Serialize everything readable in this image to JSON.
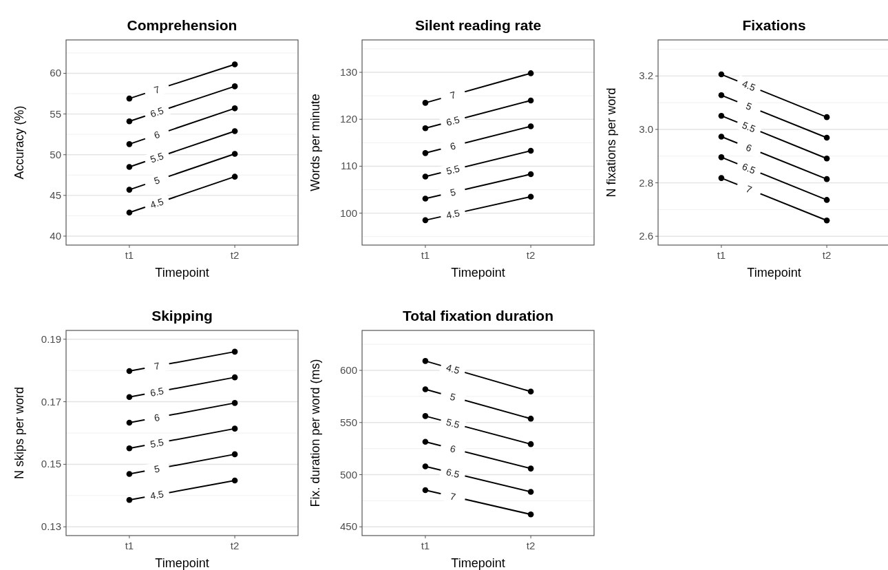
{
  "chart_data": [
    {
      "type": "line",
      "title": "Comprehension",
      "xlabel": "Timepoint",
      "ylabel": "Accuracy (%)",
      "categories": [
        "t1",
        "t2"
      ],
      "ylim": [
        38.9,
        64.1
      ],
      "yticks": [
        40,
        45,
        50,
        55,
        60
      ],
      "grid": "y",
      "marker": "circle",
      "legend": false,
      "series": [
        {
          "name": "4.5",
          "color": "#000000",
          "values": [
            42.9,
            47.3
          ]
        },
        {
          "name": "5",
          "color": "#000000",
          "values": [
            45.7,
            50.1
          ]
        },
        {
          "name": "5.5",
          "color": "#000000",
          "values": [
            48.5,
            52.9
          ]
        },
        {
          "name": "6",
          "color": "#000000",
          "values": [
            51.3,
            55.7
          ]
        },
        {
          "name": "6.5",
          "color": "#000000",
          "values": [
            54.1,
            58.4
          ]
        },
        {
          "name": "7",
          "color": "#000000",
          "values": [
            56.9,
            61.1
          ]
        }
      ]
    },
    {
      "type": "line",
      "title": "Silent reading rate",
      "xlabel": "Timepoint",
      "ylabel": "Words per minute",
      "categories": [
        "t1",
        "t2"
      ],
      "ylim": [
        93.2,
        136.9
      ],
      "yticks": [
        100,
        110,
        120,
        130
      ],
      "grid": "y",
      "marker": "circle",
      "legend": false,
      "series": [
        {
          "name": "4.5",
          "color": "#000000",
          "values": [
            98.5,
            103.5
          ]
        },
        {
          "name": "5",
          "color": "#000000",
          "values": [
            103.1,
            108.3
          ]
        },
        {
          "name": "5.5",
          "color": "#000000",
          "values": [
            107.8,
            113.3
          ]
        },
        {
          "name": "6",
          "color": "#000000",
          "values": [
            112.8,
            118.5
          ]
        },
        {
          "name": "6.5",
          "color": "#000000",
          "values": [
            118.1,
            124.0
          ]
        },
        {
          "name": "7",
          "color": "#000000",
          "values": [
            123.5,
            129.8
          ]
        }
      ]
    },
    {
      "type": "line",
      "title": "Fixations",
      "xlabel": "Timepoint",
      "ylabel": "N fixations per word",
      "categories": [
        "t1",
        "t2"
      ],
      "ylim": [
        2.567,
        3.335
      ],
      "yticks": [
        {
          "value": 2.6,
          "label": "2.6"
        },
        {
          "value": 2.8,
          "label": "2.8"
        },
        {
          "value": 3.0,
          "label": "3.0"
        },
        {
          "value": 3.2,
          "label": "3.2"
        }
      ],
      "grid": "y",
      "marker": "circle",
      "legend": false,
      "series": [
        {
          "name": "4.5",
          "color": "#000000",
          "values": [
            3.206,
            3.046
          ]
        },
        {
          "name": "5",
          "color": "#000000",
          "values": [
            3.128,
            2.969
          ]
        },
        {
          "name": "5.5",
          "color": "#000000",
          "values": [
            3.051,
            2.891
          ]
        },
        {
          "name": "6",
          "color": "#000000",
          "values": [
            2.973,
            2.814
          ]
        },
        {
          "name": "6.5",
          "color": "#000000",
          "values": [
            2.896,
            2.736
          ]
        },
        {
          "name": "7",
          "color": "#000000",
          "values": [
            2.818,
            2.659
          ]
        }
      ]
    },
    {
      "type": "line",
      "title": "Skipping",
      "xlabel": "Timepoint",
      "ylabel": "N skips per word",
      "categories": [
        "t1",
        "t2"
      ],
      "ylim": [
        0.1272,
        0.1928
      ],
      "yticks": [
        0.13,
        0.15,
        0.17,
        0.19
      ],
      "grid": "y",
      "marker": "circle",
      "legend": false,
      "series": [
        {
          "name": "4.5",
          "color": "#000000",
          "values": [
            0.1386,
            0.1448
          ]
        },
        {
          "name": "5",
          "color": "#000000",
          "values": [
            0.1469,
            0.1532
          ]
        },
        {
          "name": "5.5",
          "color": "#000000",
          "values": [
            0.1551,
            0.1614
          ]
        },
        {
          "name": "6",
          "color": "#000000",
          "values": [
            0.1633,
            0.1696
          ]
        },
        {
          "name": "6.5",
          "color": "#000000",
          "values": [
            0.1715,
            0.1778
          ]
        },
        {
          "name": "7",
          "color": "#000000",
          "values": [
            0.1798,
            0.186
          ]
        }
      ]
    },
    {
      "type": "line",
      "title": "Total fixation duration",
      "xlabel": "Timepoint",
      "ylabel": "Fix. duration per word (ms)",
      "categories": [
        "t1",
        "t2"
      ],
      "ylim": [
        441.6,
        638.3
      ],
      "yticks": [
        450,
        500,
        550,
        600
      ],
      "grid": "y",
      "marker": "circle",
      "legend": false,
      "series": [
        {
          "name": "4.5",
          "color": "#000000",
          "values": [
            609.0,
            579.7
          ]
        },
        {
          "name": "5",
          "color": "#000000",
          "values": [
            581.9,
            553.7
          ]
        },
        {
          "name": "5.5",
          "color": "#000000",
          "values": [
            556.2,
            529.3
          ]
        },
        {
          "name": "6",
          "color": "#000000",
          "values": [
            531.5,
            505.9
          ]
        },
        {
          "name": "6.5",
          "color": "#000000",
          "values": [
            507.9,
            483.5
          ]
        },
        {
          "name": "7",
          "color": "#000000",
          "values": [
            485.2,
            461.9
          ]
        }
      ]
    }
  ]
}
